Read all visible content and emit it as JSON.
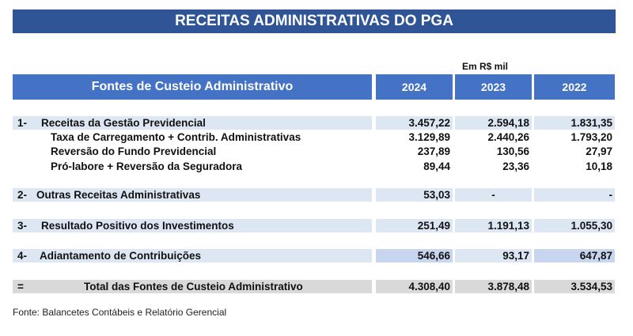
{
  "title": "RECEITAS ADMINISTRATIVAS DO PGA",
  "unit_note": "Em R$ mil",
  "header": {
    "label": "Fontes de Custeio Administrativo",
    "years": [
      "2024",
      "2023",
      "2022"
    ]
  },
  "sections": [
    {
      "num": "1-",
      "label": "Receitas da Gestão Previdencial",
      "values": [
        "3.457,22",
        "2.594,18",
        "1.831,35"
      ],
      "subitems": [
        {
          "label": "Taxa de Carregamento + Contrib. Administrativas",
          "values": [
            "3.129,89",
            "2.440,26",
            "1.793,20"
          ]
        },
        {
          "label": "Reversão do Fundo Previdencial",
          "values": [
            "237,89",
            "130,56",
            "27,97"
          ]
        },
        {
          "label": "Pró-labore + Reversão da Seguradora",
          "values": [
            "89,44",
            "23,36",
            "10,18"
          ]
        }
      ]
    },
    {
      "num": "2-",
      "label": "Outras Receitas Administrativas",
      "values": [
        "53,03",
        "-",
        "-"
      ]
    },
    {
      "num": "3-",
      "label": "Resultado Positivo dos Investimentos",
      "values": [
        "251,49",
        "1.191,13",
        "1.055,30"
      ]
    },
    {
      "num": "4-",
      "label": "Adiantamento de Contribuições",
      "values": [
        "546,66",
        "93,17",
        "647,87"
      ]
    }
  ],
  "total": {
    "num": "=",
    "label": "Total das Fontes de Custeio Administrativo",
    "values": [
      "4.308,40",
      "3.878,48",
      "3.534,53"
    ]
  },
  "source": "Fonte: Balancetes Contábeis e Relatório Gerencial",
  "colors": {
    "title_bg": "#2f5597",
    "header_bg": "#4472c4",
    "row_bg": "#dde6f3",
    "highlight_bg": "#c7d6ee",
    "total_bg": "#d9d9d9"
  }
}
